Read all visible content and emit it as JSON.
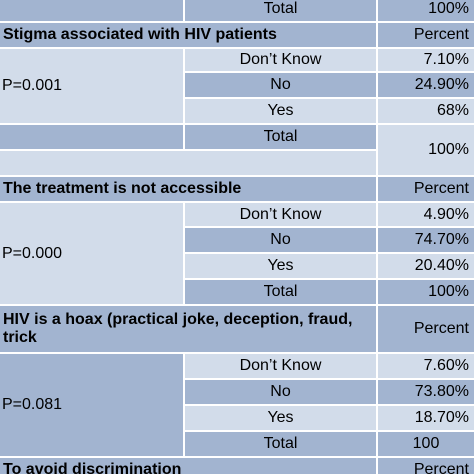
{
  "rows": {
    "top_total_label": "Total",
    "top_total_value": "100%",
    "s1_title": "Stigma associated with HIV patients",
    "s1_percent": "Percent",
    "s1_p": "P=0.001",
    "s1_dk": "Don’t Know",
    "s1_dk_v": "7.10%",
    "s1_no": "No",
    "s1_no_v": "24.90%",
    "s1_yes": "Yes",
    "s1_yes_v": "68%",
    "s1_total": "Total",
    "s1_total_v": "100%",
    "s2_title": "The treatment is not accessible",
    "s2_percent": "Percent",
    "s2_p": "P=0.000",
    "s2_dk": "Don’t Know",
    "s2_dk_v": "4.90%",
    "s2_no": "No",
    "s2_no_v": "74.70%",
    "s2_yes": "Yes",
    "s2_yes_v": "20.40%",
    "s2_total": "Total",
    "s2_total_v": "100%",
    "s3_title": "HIV is a hoax (practical joke, deception, fraud, trick",
    "s3_percent": "Percent",
    "s3_p": "P=0.081",
    "s3_dk": "Don’t Know",
    "s3_dk_v": "7.60%",
    "s3_no": "No",
    "s3_no_v": "73.80%",
    "s3_yes": "Yes",
    "s3_yes_v": "18.70%",
    "s3_total": "Total",
    "s3_total_v": "100",
    "s4_title": "To avoid discrimination",
    "s4_percent": "Percent"
  }
}
